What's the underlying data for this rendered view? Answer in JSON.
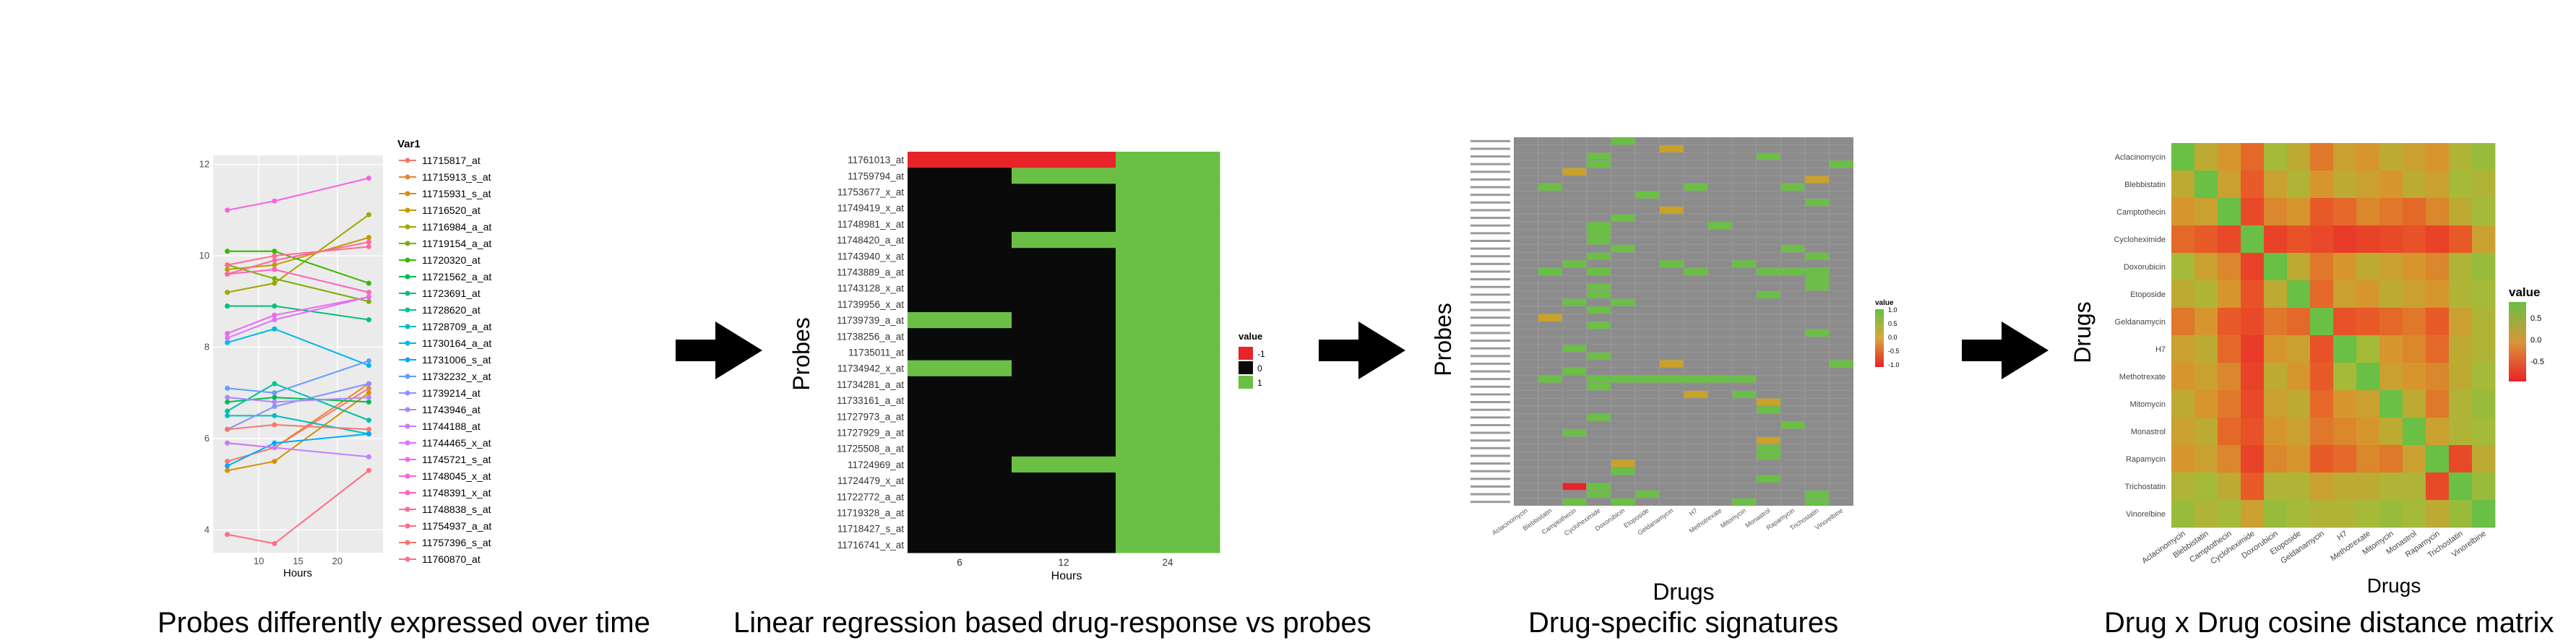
{
  "colors": {
    "plot_bg": "#ebebeb",
    "grid": "#ffffff",
    "cell_black": "#0a0a0a",
    "cell_green": "#6abf45",
    "cell_red": "#e8232a",
    "cell_gray": "#8c8c8c",
    "cell_yellow": "#c9a227",
    "arrow": "#000000"
  },
  "captions": {
    "p1": "Probes differently expressed over time",
    "p2": "Linear regression based drug-response vs probes",
    "p3": "Drug-specific signatures",
    "p4": "Drug x Drug cosine distance matrix"
  },
  "chart_data": [
    {
      "type": "line",
      "xlabel": "Hours",
      "ylabel": "",
      "xlim": [
        4.2,
        25.8
      ],
      "ylim": [
        3.5,
        12.2
      ],
      "x_ticks": [
        "10",
        "15",
        "20"
      ],
      "y_ticks": [
        "4",
        "6",
        "8",
        "10",
        "12"
      ],
      "x": [
        6,
        12,
        24
      ],
      "legend_title": "Var1",
      "series": [
        {
          "name": "11715817_at",
          "color": "#f8766d",
          "values": [
            5.5,
            5.8,
            7.1
          ]
        },
        {
          "name": "11715913_s_at",
          "color": "#ea8331",
          "values": [
            5.9,
            5.8,
            7.2
          ]
        },
        {
          "name": "11715931_s_at",
          "color": "#d89000",
          "values": [
            5.3,
            5.5,
            7.0
          ]
        },
        {
          "name": "11716520_at",
          "color": "#c09b00",
          "values": [
            9.7,
            9.8,
            10.4
          ]
        },
        {
          "name": "11716984_a_at",
          "color": "#a3a500",
          "values": [
            9.2,
            9.4,
            10.9
          ]
        },
        {
          "name": "11719154_a_at",
          "color": "#7cae00",
          "values": [
            9.8,
            9.5,
            9.0
          ]
        },
        {
          "name": "11720320_at",
          "color": "#39b600",
          "values": [
            10.1,
            10.1,
            9.4
          ]
        },
        {
          "name": "11721562_a_at",
          "color": "#00bb4e",
          "values": [
            6.8,
            6.9,
            6.8
          ]
        },
        {
          "name": "11723691_at",
          "color": "#00bf7d",
          "values": [
            8.9,
            8.9,
            8.6
          ]
        },
        {
          "name": "11728620_at",
          "color": "#00c1a3",
          "values": [
            6.6,
            7.2,
            6.4
          ]
        },
        {
          "name": "11728709_a_at",
          "color": "#00bfc4",
          "values": [
            6.5,
            6.5,
            6.1
          ]
        },
        {
          "name": "11730164_a_at",
          "color": "#00b8e7",
          "values": [
            8.1,
            8.4,
            7.6
          ]
        },
        {
          "name": "11731006_s_at",
          "color": "#00a9ff",
          "values": [
            5.4,
            5.9,
            6.1
          ]
        },
        {
          "name": "11732232_x_at",
          "color": "#619cff",
          "values": [
            7.1,
            7.0,
            7.7
          ]
        },
        {
          "name": "11739214_at",
          "color": "#8494ff",
          "values": [
            6.2,
            6.7,
            7.2
          ]
        },
        {
          "name": "11743946_at",
          "color": "#ae87ff",
          "values": [
            6.9,
            6.8,
            6.9
          ]
        },
        {
          "name": "11744188_at",
          "color": "#c77cff",
          "values": [
            5.9,
            5.8,
            5.6
          ]
        },
        {
          "name": "11744465_x_at",
          "color": "#db72fb",
          "values": [
            8.2,
            8.6,
            9.1
          ]
        },
        {
          "name": "11745721_s_at",
          "color": "#ed68ed",
          "values": [
            8.3,
            8.7,
            9.1
          ]
        },
        {
          "name": "11748045_x_at",
          "color": "#f863de",
          "values": [
            11.0,
            11.2,
            11.7
          ]
        },
        {
          "name": "11748391_x_at",
          "color": "#ff62bc",
          "values": [
            9.6,
            9.7,
            9.2
          ]
        },
        {
          "name": "11748838_s_at",
          "color": "#ff6a98",
          "values": [
            9.6,
            9.9,
            10.3
          ]
        },
        {
          "name": "11754937_a_at",
          "color": "#fd6e82",
          "values": [
            3.9,
            3.7,
            5.3
          ]
        },
        {
          "name": "11757396_s_at",
          "color": "#f8766d",
          "values": [
            6.2,
            6.3,
            6.2
          ]
        },
        {
          "name": "11760870_at",
          "color": "#ff6c8d",
          "values": [
            9.8,
            10.0,
            10.2
          ]
        }
      ]
    },
    {
      "type": "heatmap",
      "xlabel": "Hours",
      "ylabel": "Probes",
      "x_ticks": [
        "6",
        "12",
        "24"
      ],
      "rows": [
        "11761013_at",
        "11759794_at",
        "11753677_x_at",
        "11749419_x_at",
        "11748981_x_at",
        "11748420_a_at",
        "11743940_x_at",
        "11743889_a_at",
        "11743128_x_at",
        "11739956_x_at",
        "11739739_a_at",
        "11738256_a_at",
        "11735011_at",
        "11734942_x_at",
        "11734281_a_at",
        "11733161_a_at",
        "11727973_a_at",
        "11727929_a_at",
        "11725508_a_at",
        "11724969_at",
        "11724479_x_at",
        "11722772_a_at",
        "11719328_a_at",
        "11718427_s_at",
        "11716741_x_at"
      ],
      "values": [
        [
          -1,
          -1,
          1
        ],
        [
          0,
          1,
          1
        ],
        [
          0,
          0,
          1
        ],
        [
          0,
          0,
          1
        ],
        [
          0,
          0,
          1
        ],
        [
          0,
          1,
          1
        ],
        [
          0,
          0,
          1
        ],
        [
          0,
          0,
          1
        ],
        [
          0,
          0,
          1
        ],
        [
          0,
          0,
          1
        ],
        [
          1,
          0,
          1
        ],
        [
          0,
          0,
          1
        ],
        [
          0,
          0,
          1
        ],
        [
          1,
          0,
          1
        ],
        [
          0,
          0,
          1
        ],
        [
          0,
          0,
          1
        ],
        [
          0,
          0,
          1
        ],
        [
          0,
          0,
          1
        ],
        [
          0,
          0,
          1
        ],
        [
          0,
          1,
          1
        ],
        [
          0,
          0,
          1
        ],
        [
          0,
          0,
          1
        ],
        [
          0,
          0,
          1
        ],
        [
          0,
          0,
          1
        ],
        [
          0,
          0,
          1
        ]
      ],
      "legend_title": "value",
      "legend": [
        {
          "label": "-1",
          "color": "#e8232a"
        },
        {
          "label": "0",
          "color": "#0a0a0a"
        },
        {
          "label": "1",
          "color": "#6abf45"
        }
      ]
    },
    {
      "type": "heatmap",
      "xlabel": "Drugs",
      "ylabel": "Probes",
      "row_count": 48,
      "columns": [
        "Aclacinomycin",
        "Blebbistatin",
        "Camptothecin",
        "Cycloheximide",
        "Doxorubicin",
        "Etoposide",
        "Geldanamycin",
        "H7",
        "Methotrexate",
        "Mitomycin",
        "Monastrol",
        "Rapamycin",
        "Trichostatin",
        "Vinorelbine"
      ],
      "legend_title": "value",
      "legend_ticks": [
        "1.0",
        "0.5",
        "0.0",
        "-0.5",
        "-1.0"
      ],
      "value_cells": [
        [
          0,
          4,
          1
        ],
        [
          1,
          6,
          -1
        ],
        [
          2,
          3,
          1
        ],
        [
          2,
          10,
          1
        ],
        [
          3,
          3,
          1
        ],
        [
          3,
          13,
          1
        ],
        [
          4,
          2,
          -1
        ],
        [
          5,
          12,
          -1
        ],
        [
          6,
          1,
          1
        ],
        [
          6,
          7,
          1
        ],
        [
          6,
          11,
          1
        ],
        [
          7,
          5,
          1
        ],
        [
          8,
          12,
          1
        ],
        [
          9,
          6,
          -1
        ],
        [
          10,
          4,
          1
        ],
        [
          11,
          3,
          1
        ],
        [
          11,
          8,
          1
        ],
        [
          12,
          3,
          1
        ],
        [
          13,
          3,
          1
        ],
        [
          14,
          4,
          1
        ],
        [
          14,
          11,
          1
        ],
        [
          15,
          3,
          1
        ],
        [
          15,
          12,
          1
        ],
        [
          16,
          2,
          1
        ],
        [
          16,
          6,
          1
        ],
        [
          16,
          9,
          1
        ],
        [
          17,
          1,
          1
        ],
        [
          17,
          3,
          1
        ],
        [
          17,
          7,
          1
        ],
        [
          17,
          10,
          1
        ],
        [
          17,
          11,
          1
        ],
        [
          17,
          12,
          1
        ],
        [
          18,
          12,
          1
        ],
        [
          19,
          3,
          1
        ],
        [
          19,
          12,
          1
        ],
        [
          20,
          3,
          1
        ],
        [
          20,
          10,
          1
        ],
        [
          21,
          2,
          1
        ],
        [
          21,
          4,
          1
        ],
        [
          22,
          3,
          1
        ],
        [
          23,
          1,
          -1
        ],
        [
          24,
          3,
          1
        ],
        [
          25,
          12,
          1
        ],
        [
          27,
          2,
          1
        ],
        [
          28,
          3,
          1
        ],
        [
          29,
          6,
          -1
        ],
        [
          29,
          13,
          1
        ],
        [
          30,
          2,
          1
        ],
        [
          31,
          1,
          1
        ],
        [
          31,
          3,
          1
        ],
        [
          31,
          4,
          1
        ],
        [
          31,
          5,
          1
        ],
        [
          31,
          6,
          1
        ],
        [
          31,
          7,
          1
        ],
        [
          31,
          8,
          1
        ],
        [
          31,
          9,
          1
        ],
        [
          32,
          3,
          1
        ],
        [
          33,
          7,
          -1
        ],
        [
          33,
          9,
          1
        ],
        [
          34,
          10,
          -1
        ],
        [
          35,
          10,
          1
        ],
        [
          36,
          3,
          1
        ],
        [
          37,
          11,
          1
        ],
        [
          38,
          2,
          1
        ],
        [
          39,
          10,
          -1
        ],
        [
          40,
          10,
          1
        ],
        [
          41,
          10,
          1
        ],
        [
          42,
          4,
          -1
        ],
        [
          43,
          4,
          1
        ],
        [
          44,
          10,
          1
        ],
        [
          45,
          2,
          -1
        ],
        [
          45,
          3,
          1
        ],
        [
          46,
          3,
          1
        ],
        [
          46,
          5,
          1
        ],
        [
          46,
          12,
          1
        ],
        [
          47,
          2,
          1
        ],
        [
          47,
          4,
          1
        ],
        [
          47,
          9,
          1
        ],
        [
          47,
          12,
          1
        ]
      ]
    },
    {
      "type": "heatmap",
      "xlabel": "Drugs",
      "ylabel": "Drugs",
      "rows": [
        "Aclacinomycin",
        "Blebbistatin",
        "Camptothecin",
        "Cycloheximide",
        "Doxorubicin",
        "Etoposide",
        "Geldanamycin",
        "H7",
        "Methotrexate",
        "Mitomycin",
        "Monastrol",
        "Rapamycin",
        "Trichostatin",
        "Vinorelbine"
      ],
      "columns": [
        "Aclacinomycin",
        "Blebbistatin",
        "Camptothecin",
        "Cycloheximide",
        "Doxorubicin",
        "Etoposide",
        "Geldanamycin",
        "H7",
        "Methotrexate",
        "Mitomycin",
        "Monastrol",
        "Rapamycin",
        "Trichostatin",
        "Vinorelbine"
      ],
      "legend_title": "value",
      "legend_ticks": [
        "0.5",
        "0.0",
        "-0.5"
      ],
      "values": [
        [
          1,
          0.3,
          0.1,
          -0.2,
          0.5,
          0.3,
          -0.1,
          0.2,
          0.1,
          0.3,
          0.2,
          0.1,
          0.4,
          0.6
        ],
        [
          0.3,
          1,
          0.2,
          -0.3,
          0.2,
          0.4,
          0.1,
          0.3,
          0.2,
          0.1,
          0.3,
          0.2,
          0.5,
          0.4
        ],
        [
          0.1,
          0.2,
          1,
          -0.5,
          0.0,
          0.1,
          -0.3,
          -0.2,
          0.0,
          -0.1,
          -0.2,
          0.0,
          0.3,
          0.5
        ],
        [
          -0.2,
          -0.3,
          -0.5,
          1,
          -0.6,
          -0.4,
          -0.5,
          -0.7,
          -0.6,
          -0.5,
          -0.4,
          -0.6,
          -0.3,
          0.2
        ],
        [
          0.5,
          0.2,
          0.0,
          -0.6,
          1,
          0.3,
          -0.1,
          0.1,
          0.3,
          0.2,
          0.1,
          0.0,
          0.4,
          0.6
        ],
        [
          0.3,
          0.4,
          0.1,
          -0.4,
          0.3,
          1,
          -0.2,
          0.2,
          0.1,
          0.3,
          0.2,
          0.1,
          0.4,
          0.5
        ],
        [
          -0.1,
          0.1,
          -0.3,
          -0.5,
          -0.1,
          -0.2,
          1,
          -0.4,
          -0.3,
          -0.2,
          -0.1,
          -0.3,
          0.2,
          0.4
        ],
        [
          0.2,
          0.3,
          -0.2,
          -0.7,
          0.1,
          0.2,
          -0.4,
          1,
          0.5,
          0.1,
          0.0,
          -0.2,
          0.3,
          0.4
        ],
        [
          0.1,
          0.2,
          0.0,
          -0.6,
          0.3,
          0.1,
          -0.3,
          0.5,
          1,
          0.2,
          0.1,
          0.0,
          0.3,
          0.5
        ],
        [
          0.3,
          0.1,
          -0.1,
          -0.5,
          0.2,
          0.3,
          -0.2,
          0.1,
          0.2,
          1,
          0.3,
          -0.1,
          0.4,
          0.6
        ],
        [
          0.2,
          0.3,
          -0.2,
          -0.4,
          0.1,
          0.2,
          -0.1,
          0.0,
          0.1,
          0.3,
          1,
          0.2,
          0.4,
          0.5
        ],
        [
          0.1,
          0.2,
          0.0,
          -0.6,
          0.0,
          0.1,
          -0.3,
          -0.2,
          0.0,
          -0.1,
          0.2,
          1,
          -0.5,
          0.3
        ],
        [
          0.4,
          0.5,
          0.3,
          -0.3,
          0.4,
          0.4,
          0.2,
          0.3,
          0.3,
          0.4,
          0.4,
          -0.5,
          1,
          0.6
        ],
        [
          0.6,
          0.4,
          0.5,
          0.2,
          0.6,
          0.5,
          0.4,
          0.4,
          0.5,
          0.6,
          0.5,
          0.3,
          0.6,
          1
        ]
      ]
    }
  ]
}
